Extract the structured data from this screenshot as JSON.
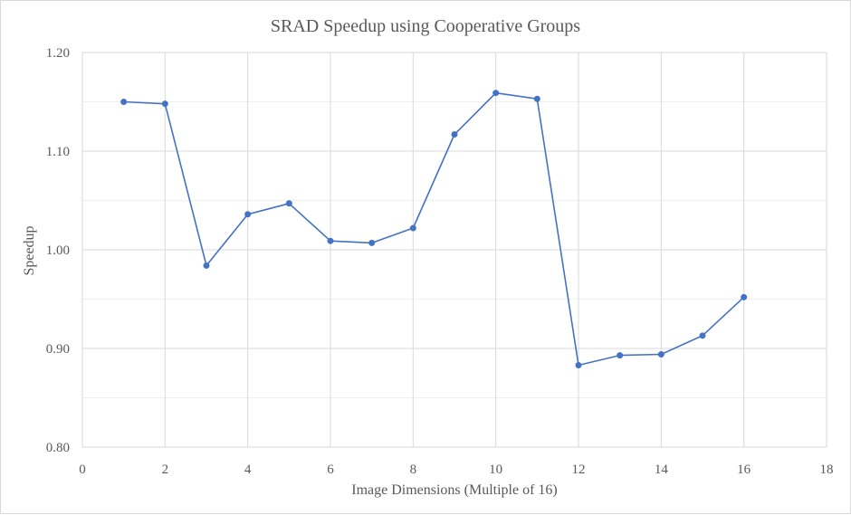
{
  "chart_data": {
    "type": "scatter",
    "title": "SRAD Speedup using Cooperative Groups",
    "xlabel": "Image Dimensions (Multiple of 16)",
    "ylabel": "Speedup",
    "xlim": [
      0,
      18
    ],
    "ylim": [
      0.8,
      1.2
    ],
    "x_ticks": [
      0,
      2,
      4,
      6,
      8,
      10,
      12,
      14,
      16,
      18
    ],
    "y_ticks": [
      0.8,
      0.9,
      1.0,
      1.1,
      1.2
    ],
    "y_tick_labels": [
      "0.80",
      "0.90",
      "1.00",
      "1.10",
      "1.20"
    ],
    "grid": {
      "major": true,
      "minor_y": true
    },
    "legend": "none",
    "series": [
      {
        "color": "#4472c4",
        "markers": true,
        "lines": true,
        "x": [
          1,
          2,
          3,
          4,
          5,
          6,
          7,
          8,
          9,
          10,
          11,
          12,
          13,
          14,
          15,
          16
        ],
        "y": [
          1.15,
          1.148,
          0.984,
          1.036,
          1.047,
          1.009,
          1.007,
          1.022,
          1.117,
          1.159,
          1.153,
          0.883,
          0.893,
          0.894,
          0.913,
          0.952
        ]
      }
    ]
  }
}
